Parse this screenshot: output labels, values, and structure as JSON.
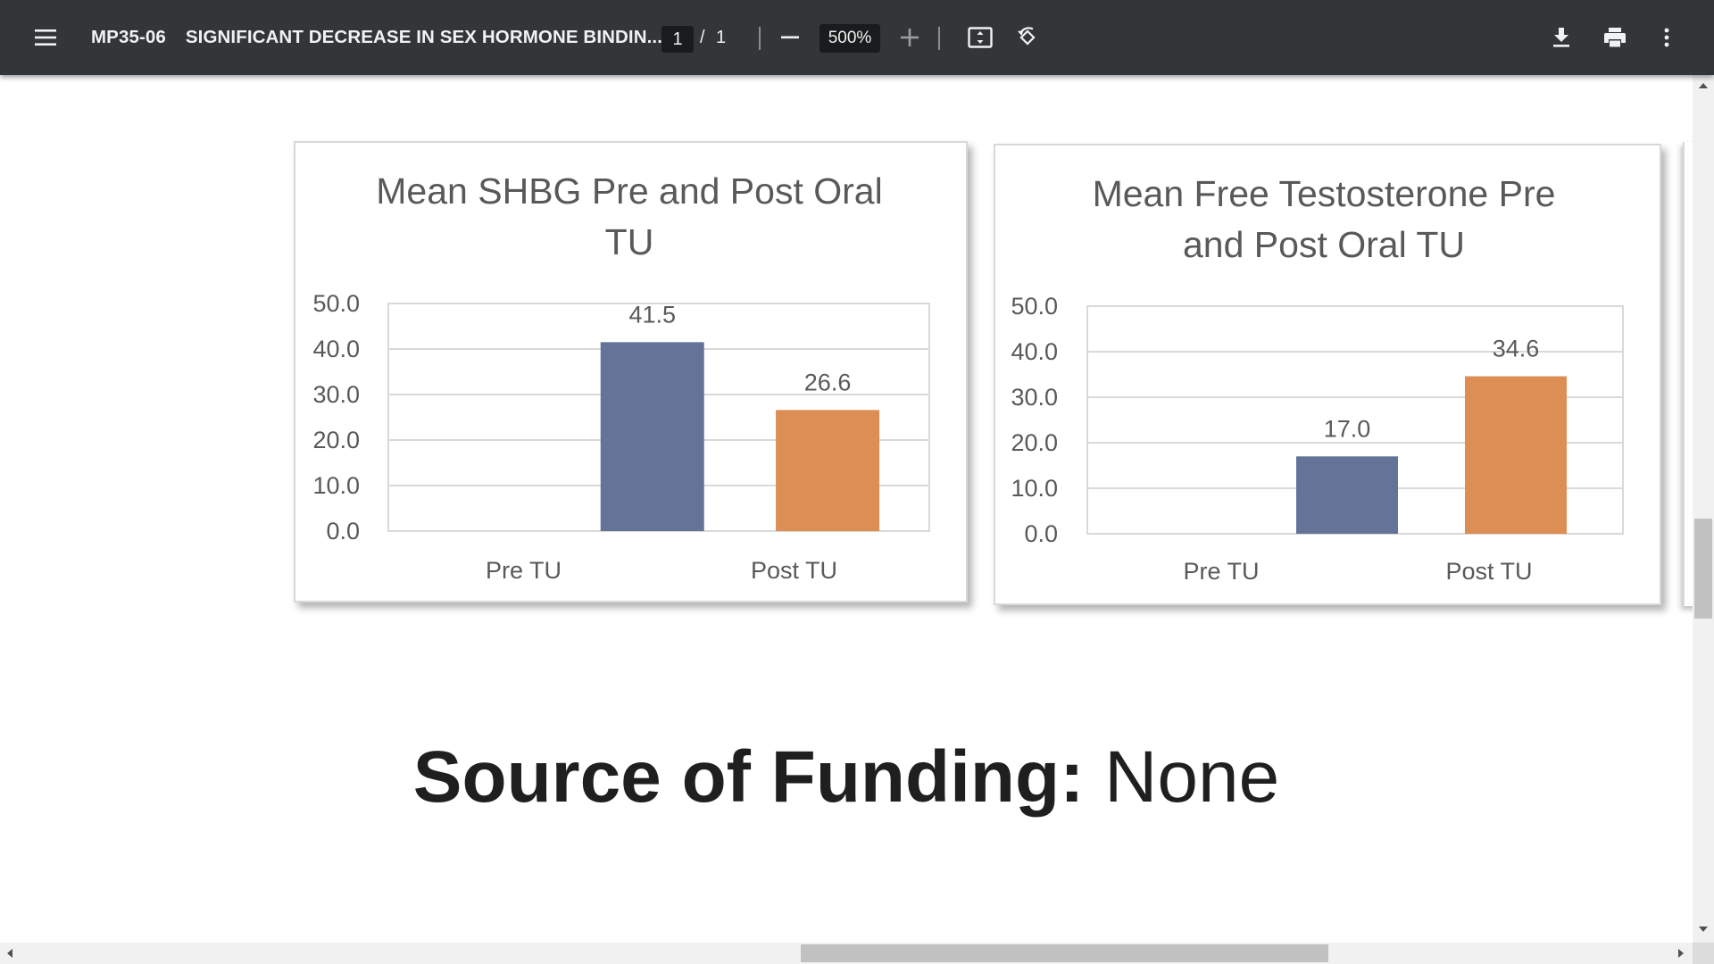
{
  "viewer": {
    "doc_code": "MP35-06",
    "doc_name": "SIGNIFICANT DECREASE IN SEX HORMONE BINDIN...",
    "page_current": "1",
    "page_separator": "/",
    "page_total": "1",
    "zoom": "500%",
    "icons": {
      "menu": "hamburger-menu-icon",
      "zoom_out": "minus-icon",
      "zoom_in": "plus-icon",
      "fit": "fit-to-page-icon",
      "rotate": "rotate-counterclockwise-icon",
      "download": "download-icon",
      "print": "print-icon",
      "more": "more-vertical-icon"
    },
    "colors": {
      "toolbar": "#323639",
      "page_background": "#ffffff"
    }
  },
  "document": {
    "funding_label": "Source of Funding:",
    "funding_value": "None"
  },
  "chart_data": [
    {
      "type": "bar",
      "title_lines": [
        "Mean SHBG Pre and Post Oral",
        "TU"
      ],
      "categories": [
        "Pre TU",
        "Post TU"
      ],
      "values": [
        41.5,
        26.6
      ],
      "value_labels": [
        "41.5",
        "26.6"
      ],
      "colors": [
        "#647499",
        "#dc8e55"
      ],
      "yticks": [
        "0.0",
        "10.0",
        "20.0",
        "30.0",
        "40.0",
        "50.0"
      ],
      "ylim": [
        0,
        50
      ],
      "grid": true,
      "legend": "none"
    },
    {
      "type": "bar",
      "title_lines": [
        "Mean Free Testosterone Pre",
        "and Post Oral TU"
      ],
      "categories": [
        "Pre TU",
        "Post TU"
      ],
      "values": [
        17.0,
        34.6
      ],
      "value_labels": [
        "17.0",
        "34.6"
      ],
      "colors": [
        "#647499",
        "#dc8e55"
      ],
      "yticks": [
        "0.0",
        "10.0",
        "20.0",
        "30.0",
        "40.0",
        "50.0"
      ],
      "ylim": [
        0,
        50
      ],
      "grid": true,
      "legend": "none"
    }
  ]
}
